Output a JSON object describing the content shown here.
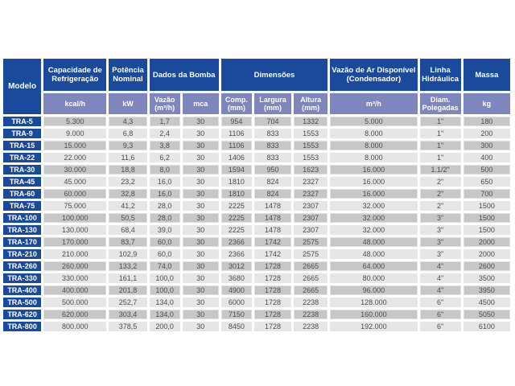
{
  "colors": {
    "header_blue": "#1b4a9c",
    "subheader_periwinkle": "#7f85bd",
    "row_dark_gray": "#c7c7c7",
    "row_light_gray": "#e6e6e6",
    "data_text": "#4d4d4d",
    "background": "#ffffff"
  },
  "table": {
    "header": {
      "modelo": "Modelo",
      "groups": [
        {
          "label": "Capacidade de Refrigeração",
          "colspan": 1
        },
        {
          "label": "Potência Nominal",
          "colspan": 1
        },
        {
          "label": "Dados da Bomba",
          "colspan": 2
        },
        {
          "label": "Dimensões",
          "colspan": 3
        },
        {
          "label": "Vazão de Ar Disponível (Condensador)",
          "colspan": 1
        },
        {
          "label": "Linha Hidráulica",
          "colspan": 1
        },
        {
          "label": "Massa",
          "colspan": 1
        }
      ],
      "subheaders": [
        "kcal/h",
        "kW",
        "Vazão (m³/h)",
        "mca",
        "Comp. (mm)",
        "Largura (mm)",
        "Altura (mm)",
        "m³/h",
        "Diam. Polegadas",
        "kg"
      ]
    },
    "rows": [
      {
        "modelo": "TRA-5",
        "values": [
          "5.300",
          "4,3",
          "1,7",
          "30",
          "954",
          "704",
          "1332",
          "5.000",
          "1\"",
          "180"
        ]
      },
      {
        "modelo": "TRA-9",
        "values": [
          "9.000",
          "6,8",
          "2,4",
          "30",
          "1106",
          "833",
          "1553",
          "8.000",
          "1\"",
          "200"
        ]
      },
      {
        "modelo": "TRA-15",
        "values": [
          "15.000",
          "9,3",
          "3,8",
          "30",
          "1106",
          "833",
          "1553",
          "8.000",
          "1\"",
          "300"
        ]
      },
      {
        "modelo": "TRA-22",
        "values": [
          "22.000",
          "11,6",
          "6,2",
          "30",
          "1406",
          "833",
          "1553",
          "8.000",
          "1\"",
          "400"
        ]
      },
      {
        "modelo": "TRA-30",
        "values": [
          "30.000",
          "18,8",
          "8,0",
          "30",
          "1594",
          "950",
          "1623",
          "16.000",
          "1.1/2\"",
          "500"
        ]
      },
      {
        "modelo": "TRA-45",
        "values": [
          "45.000",
          "23,2",
          "16,0",
          "30",
          "1810",
          "824",
          "2327",
          "16.000",
          "2\"",
          "650"
        ]
      },
      {
        "modelo": "TRA-60",
        "values": [
          "60.000",
          "32,8",
          "16,0",
          "30",
          "1810",
          "824",
          "2327",
          "16.000",
          "2\"",
          "700"
        ]
      },
      {
        "modelo": "TRA-75",
        "values": [
          "75.000",
          "41,2",
          "28,0",
          "30",
          "2225",
          "1478",
          "2307",
          "32.000",
          "2\"",
          "1500"
        ]
      },
      {
        "modelo": "TRA-100",
        "values": [
          "100.000",
          "50,5",
          "28,0",
          "30",
          "2225",
          "1478",
          "2307",
          "32.000",
          "3\"",
          "1500"
        ]
      },
      {
        "modelo": "TRA-130",
        "values": [
          "130.000",
          "68,4",
          "39,0",
          "30",
          "2225",
          "1478",
          "2307",
          "32.000",
          "3\"",
          "1500"
        ]
      },
      {
        "modelo": "TRA-170",
        "values": [
          "170.000",
          "83,7",
          "60,0",
          "30",
          "2366",
          "1742",
          "2575",
          "48.000",
          "3\"",
          "2000"
        ]
      },
      {
        "modelo": "TRA-210",
        "values": [
          "210.000",
          "102,9",
          "60,0",
          "30",
          "2366",
          "1742",
          "2575",
          "48.000",
          "3\"",
          "2000"
        ]
      },
      {
        "modelo": "TRA-260",
        "values": [
          "260.000",
          "133,2",
          "74,0",
          "30",
          "3012",
          "1728",
          "2665",
          "64.000",
          "4\"",
          "2600"
        ]
      },
      {
        "modelo": "TRA-330",
        "values": [
          "330.000",
          "161,1",
          "100,0",
          "30",
          "3680",
          "1728",
          "2665",
          "80.000",
          "4\"",
          "3500"
        ]
      },
      {
        "modelo": "TRA-400",
        "values": [
          "400.000",
          "201,8",
          "100,0",
          "30",
          "4900",
          "1728",
          "2665",
          "96.000",
          "4\"",
          "3950"
        ]
      },
      {
        "modelo": "TRA-500",
        "values": [
          "500.000",
          "252,7",
          "134,0",
          "30",
          "6000",
          "1728",
          "2238",
          "128.000",
          "6\"",
          "4500"
        ]
      },
      {
        "modelo": "TRA-620",
        "values": [
          "620.000",
          "303,4",
          "134,0",
          "30",
          "7150",
          "1728",
          "2238",
          "160.000",
          "6\"",
          "5050"
        ]
      },
      {
        "modelo": "TRA-800",
        "values": [
          "800.000",
          "378,5",
          "200,0",
          "30",
          "8450",
          "1728",
          "2238",
          "192.000",
          "6\"",
          "6100"
        ]
      }
    ]
  }
}
